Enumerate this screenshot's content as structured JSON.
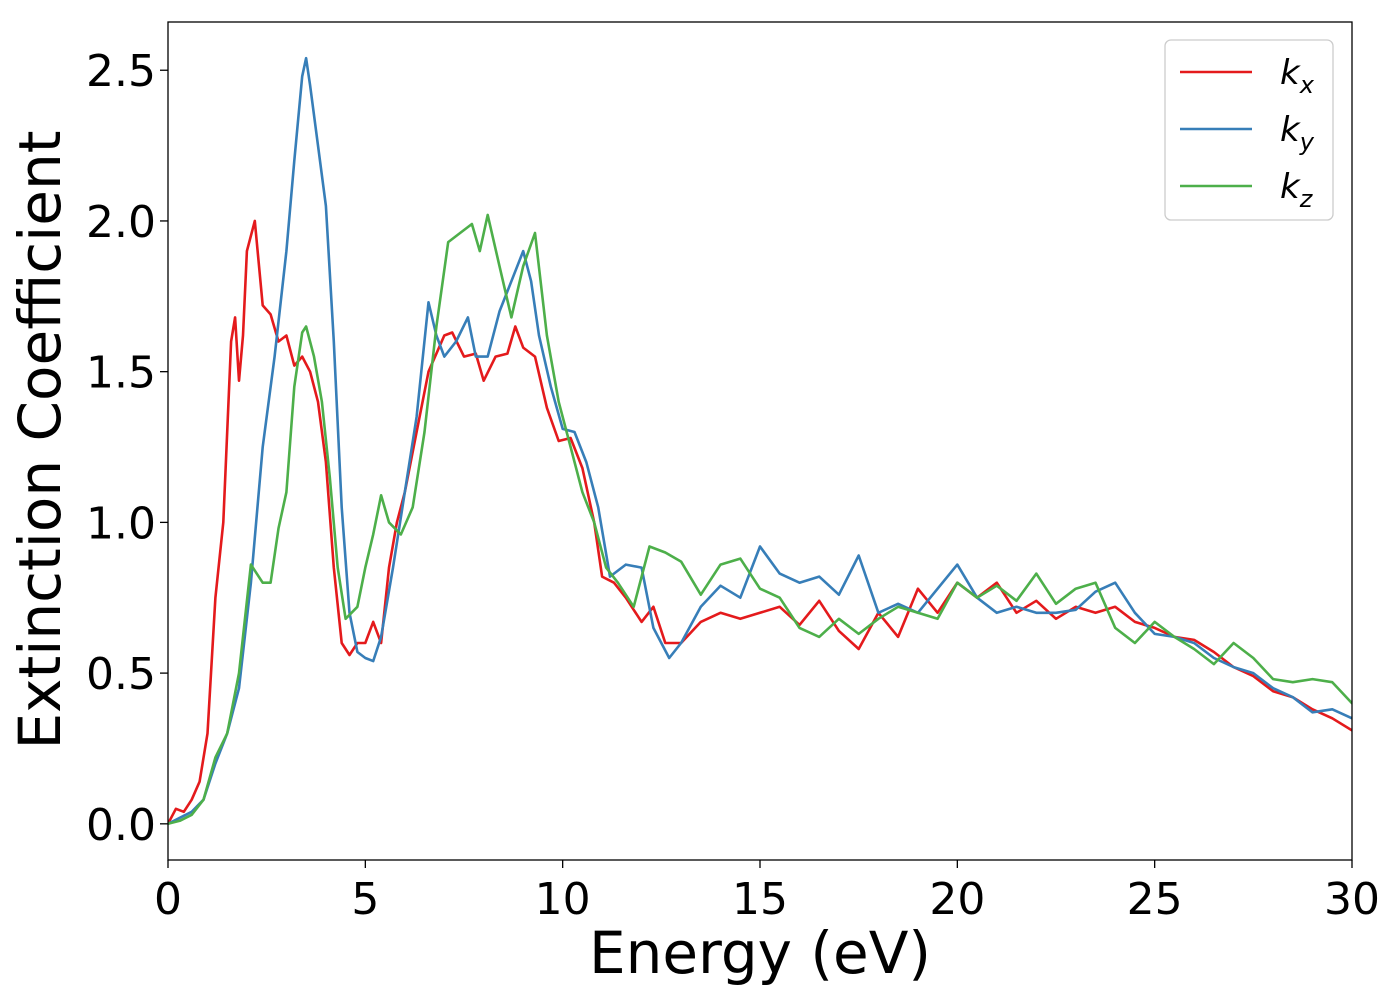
{
  "chart_data": {
    "type": "line",
    "title": "",
    "xlabel": "Energy (eV)",
    "ylabel": "Extinction Coefficient",
    "xlim": [
      0,
      30
    ],
    "ylim": [
      -0.12,
      2.66
    ],
    "xticks": [
      0,
      5,
      10,
      15,
      20,
      25,
      30
    ],
    "xtick_labels": [
      "0",
      "5",
      "10",
      "15",
      "20",
      "25",
      "30"
    ],
    "yticks": [
      0.0,
      0.5,
      1.0,
      1.5,
      2.0,
      2.5
    ],
    "ytick_labels": [
      "0.0",
      "0.5",
      "1.0",
      "1.5",
      "2.0",
      "2.5"
    ],
    "grid": false,
    "legend_position": "top-right",
    "series": [
      {
        "name": "k_x",
        "label_main": "k",
        "label_sub": "x",
        "color": "#e41a1c",
        "x": [
          0,
          0.2,
          0.4,
          0.6,
          0.8,
          1.0,
          1.2,
          1.4,
          1.6,
          1.7,
          1.8,
          1.9,
          2.0,
          2.2,
          2.4,
          2.6,
          2.8,
          3.0,
          3.2,
          3.4,
          3.6,
          3.8,
          4.0,
          4.2,
          4.4,
          4.6,
          4.8,
          5.0,
          5.2,
          5.4,
          5.6,
          5.8,
          6.0,
          6.3,
          6.6,
          7.0,
          7.2,
          7.5,
          7.8,
          8.0,
          8.3,
          8.6,
          8.8,
          9.0,
          9.3,
          9.6,
          9.9,
          10.2,
          10.5,
          10.8,
          11.0,
          11.3,
          11.6,
          12.0,
          12.3,
          12.6,
          13.0,
          13.5,
          14.0,
          14.5,
          15.0,
          15.5,
          16.0,
          16.5,
          17.0,
          17.5,
          18.0,
          18.5,
          19.0,
          19.5,
          20.0,
          20.5,
          21.0,
          21.5,
          22.0,
          22.5,
          23.0,
          23.5,
          24.0,
          24.5,
          25.0,
          25.5,
          26.0,
          26.5,
          27.0,
          27.5,
          28.0,
          28.5,
          29.0,
          29.5,
          30.0
        ],
        "y": [
          0.0,
          0.05,
          0.04,
          0.08,
          0.14,
          0.3,
          0.75,
          1.0,
          1.6,
          1.68,
          1.47,
          1.62,
          1.9,
          2.0,
          1.72,
          1.69,
          1.6,
          1.62,
          1.52,
          1.55,
          1.5,
          1.4,
          1.2,
          0.85,
          0.6,
          0.56,
          0.6,
          0.6,
          0.67,
          0.6,
          0.85,
          1.0,
          1.1,
          1.3,
          1.5,
          1.62,
          1.63,
          1.55,
          1.56,
          1.47,
          1.55,
          1.56,
          1.65,
          1.58,
          1.55,
          1.38,
          1.27,
          1.28,
          1.18,
          1.0,
          0.82,
          0.8,
          0.75,
          0.67,
          0.72,
          0.6,
          0.6,
          0.67,
          0.7,
          0.68,
          0.7,
          0.72,
          0.66,
          0.74,
          0.64,
          0.58,
          0.7,
          0.62,
          0.78,
          0.7,
          0.8,
          0.75,
          0.8,
          0.7,
          0.74,
          0.68,
          0.72,
          0.7,
          0.72,
          0.67,
          0.65,
          0.62,
          0.61,
          0.57,
          0.52,
          0.49,
          0.44,
          0.42,
          0.38,
          0.35,
          0.31
        ]
      },
      {
        "name": "k_y",
        "label_main": "k",
        "label_sub": "y",
        "color": "#377eb8",
        "x": [
          0,
          0.3,
          0.6,
          0.9,
          1.2,
          1.5,
          1.8,
          2.1,
          2.4,
          2.7,
          3.0,
          3.2,
          3.4,
          3.5,
          3.6,
          3.8,
          4.0,
          4.2,
          4.4,
          4.6,
          4.8,
          5.0,
          5.2,
          5.4,
          5.7,
          6.0,
          6.3,
          6.6,
          6.8,
          7.0,
          7.3,
          7.6,
          7.8,
          8.1,
          8.4,
          8.7,
          9.0,
          9.2,
          9.4,
          9.7,
          10.0,
          10.3,
          10.6,
          10.9,
          11.2,
          11.6,
          12.0,
          12.3,
          12.7,
          13.0,
          13.5,
          14.0,
          14.5,
          15.0,
          15.5,
          16.0,
          16.5,
          17.0,
          17.5,
          18.0,
          18.5,
          19.0,
          19.5,
          20.0,
          20.5,
          21.0,
          21.5,
          22.0,
          22.5,
          23.0,
          23.5,
          24.0,
          24.5,
          25.0,
          25.5,
          26.0,
          26.5,
          27.0,
          27.5,
          28.0,
          28.5,
          29.0,
          29.5,
          30.0
        ],
        "y": [
          0.0,
          0.02,
          0.04,
          0.08,
          0.2,
          0.3,
          0.45,
          0.8,
          1.25,
          1.55,
          1.9,
          2.2,
          2.48,
          2.54,
          2.45,
          2.25,
          2.05,
          1.6,
          1.05,
          0.7,
          0.57,
          0.55,
          0.54,
          0.62,
          0.85,
          1.1,
          1.35,
          1.73,
          1.62,
          1.55,
          1.6,
          1.68,
          1.55,
          1.55,
          1.7,
          1.8,
          1.9,
          1.8,
          1.62,
          1.45,
          1.31,
          1.3,
          1.2,
          1.05,
          0.82,
          0.86,
          0.85,
          0.65,
          0.55,
          0.6,
          0.72,
          0.79,
          0.75,
          0.92,
          0.83,
          0.8,
          0.82,
          0.76,
          0.89,
          0.7,
          0.73,
          0.7,
          0.78,
          0.86,
          0.75,
          0.7,
          0.72,
          0.7,
          0.7,
          0.71,
          0.77,
          0.8,
          0.7,
          0.63,
          0.62,
          0.6,
          0.55,
          0.52,
          0.5,
          0.45,
          0.42,
          0.37,
          0.38,
          0.35
        ]
      },
      {
        "name": "k_z",
        "label_main": "k",
        "label_sub": "z",
        "color": "#4daf4a",
        "x": [
          0,
          0.3,
          0.6,
          0.9,
          1.2,
          1.5,
          1.8,
          2.1,
          2.4,
          2.6,
          2.8,
          3.0,
          3.2,
          3.4,
          3.5,
          3.7,
          3.9,
          4.1,
          4.3,
          4.5,
          4.8,
          5.0,
          5.2,
          5.4,
          5.6,
          5.9,
          6.2,
          6.5,
          6.8,
          7.1,
          7.4,
          7.7,
          7.9,
          8.1,
          8.4,
          8.7,
          9.0,
          9.3,
          9.6,
          9.9,
          10.2,
          10.5,
          10.8,
          11.1,
          11.4,
          11.8,
          12.2,
          12.6,
          13.0,
          13.5,
          14.0,
          14.5,
          15.0,
          15.5,
          16.0,
          16.5,
          17.0,
          17.5,
          18.0,
          18.5,
          19.0,
          19.5,
          20.0,
          20.5,
          21.0,
          21.5,
          22.0,
          22.5,
          23.0,
          23.5,
          24.0,
          24.5,
          25.0,
          25.5,
          26.0,
          26.5,
          27.0,
          27.5,
          28.0,
          28.5,
          29.0,
          29.5,
          30.0
        ],
        "y": [
          0.0,
          0.01,
          0.03,
          0.08,
          0.22,
          0.3,
          0.5,
          0.86,
          0.8,
          0.8,
          0.98,
          1.1,
          1.45,
          1.63,
          1.65,
          1.55,
          1.4,
          1.15,
          0.85,
          0.68,
          0.72,
          0.85,
          0.96,
          1.09,
          1.0,
          0.96,
          1.05,
          1.3,
          1.65,
          1.93,
          1.96,
          1.99,
          1.9,
          2.02,
          1.85,
          1.68,
          1.85,
          1.96,
          1.62,
          1.4,
          1.25,
          1.1,
          1.0,
          0.85,
          0.8,
          0.72,
          0.92,
          0.9,
          0.87,
          0.76,
          0.86,
          0.88,
          0.78,
          0.75,
          0.65,
          0.62,
          0.68,
          0.63,
          0.68,
          0.72,
          0.7,
          0.68,
          0.8,
          0.75,
          0.79,
          0.74,
          0.83,
          0.73,
          0.78,
          0.8,
          0.65,
          0.6,
          0.67,
          0.62,
          0.58,
          0.53,
          0.6,
          0.55,
          0.48,
          0.47,
          0.48,
          0.47,
          0.4
        ]
      }
    ]
  }
}
